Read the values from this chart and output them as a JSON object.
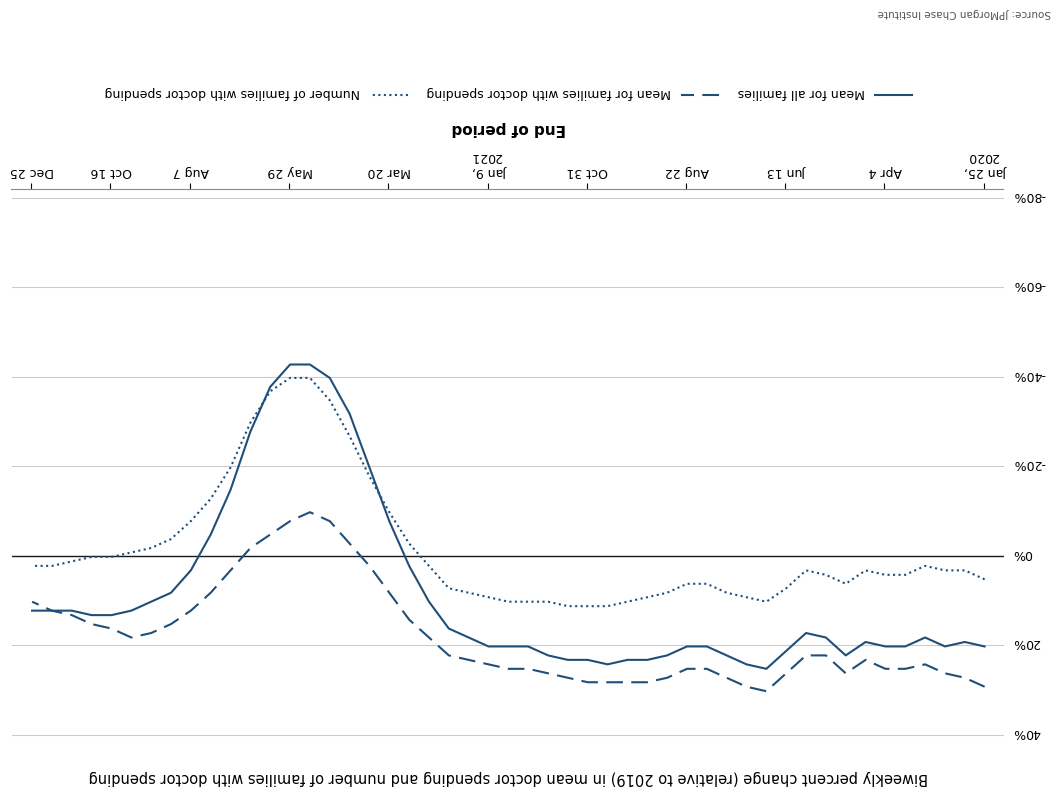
{
  "title": "Biweekly percent change (relative to 2019) in mean doctor spending and number of families with doctor spending",
  "xlabel": "End of period",
  "background_color": "#ffffff",
  "line_color": "#1f4e79",
  "grid_color": "#cccccc",
  "zero_line_color": "#1a1a1a",
  "ylim": [
    -80,
    40
  ],
  "yticks": [
    40,
    20,
    0,
    -20,
    -40,
    -60,
    -80
  ],
  "legend_labels": [
    "Mean for all families",
    "Mean for families with doctor spending",
    "Number of families with doctor spending"
  ],
  "source_text": "Source: JPMorgan Chase Institute",
  "x_tick_labels": [
    "Jan 25,\n2020",
    "Apr 4",
    "Jun 13",
    "Aug 22",
    "Oct 31",
    "Jan 9,\n2021",
    "Mar 20",
    "May 29",
    "Aug 7",
    "Oct 16",
    "Dec 25"
  ],
  "x_tick_pos": [
    0,
    5,
    10,
    15,
    20,
    25,
    30,
    35,
    40,
    44,
    48
  ],
  "mean_all": [
    20,
    19,
    20,
    18,
    20,
    20,
    19,
    22,
    18,
    17,
    21,
    25,
    24,
    22,
    20,
    20,
    22,
    23,
    23,
    24,
    23,
    23,
    22,
    20,
    20,
    20,
    18,
    16,
    10,
    2,
    -8,
    -20,
    -32,
    -40,
    -43,
    -43,
    -38,
    -28,
    -15,
    -5,
    3,
    8,
    10,
    12,
    13,
    13,
    12,
    12,
    12
  ],
  "mean_families": [
    29,
    27,
    26,
    24,
    25,
    25,
    23,
    26,
    22,
    22,
    26,
    30,
    29,
    27,
    25,
    25,
    27,
    28,
    28,
    28,
    28,
    27,
    26,
    25,
    25,
    24,
    23,
    22,
    18,
    14,
    8,
    2,
    -3,
    -8,
    -10,
    -8,
    -5,
    -2,
    3,
    8,
    12,
    15,
    17,
    18,
    16,
    15,
    13,
    12,
    10
  ],
  "num_families": [
    5,
    3,
    3,
    2,
    4,
    4,
    3,
    6,
    4,
    3,
    7,
    10,
    9,
    8,
    6,
    6,
    8,
    9,
    10,
    11,
    11,
    11,
    10,
    10,
    10,
    9,
    8,
    7,
    2,
    -3,
    -10,
    -18,
    -27,
    -35,
    -40,
    -40,
    -37,
    -30,
    -20,
    -13,
    -8,
    -4,
    -2,
    -1,
    0,
    0,
    1,
    2,
    2
  ]
}
